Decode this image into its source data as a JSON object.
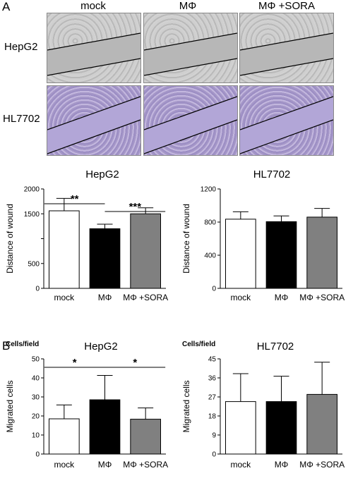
{
  "figure": {
    "panel_a": "A",
    "panel_b": "B",
    "columns": [
      "mock",
      "MΦ",
      "MΦ +SORA"
    ],
    "rows": [
      "HepG2",
      "HL7702"
    ]
  },
  "chart_data": [
    {
      "type": "bar",
      "title": "HepG2",
      "ylabel": "Distance of wound",
      "categories": [
        "mock",
        "MΦ",
        "MΦ +SORA"
      ],
      "values": [
        1560,
        1200,
        1500
      ],
      "errors": [
        250,
        90,
        120
      ],
      "colors": [
        "#ffffff",
        "#000000",
        "#808080"
      ],
      "ylim": [
        0,
        2000
      ],
      "yticks": [
        0,
        500,
        1000,
        1500,
        2000
      ],
      "yticklabels": [
        "0",
        "500",
        "",
        "1500",
        "2000"
      ],
      "significance": [
        {
          "from": 0,
          "to": 1,
          "label": "**"
        },
        {
          "from": 1,
          "to": 2,
          "label": "***"
        }
      ]
    },
    {
      "type": "bar",
      "title": "HL7702",
      "ylabel": "Distance of wound",
      "categories": [
        "mock",
        "MΦ",
        "MΦ +SORA"
      ],
      "values": [
        835,
        805,
        860
      ],
      "errors": [
        90,
        70,
        105
      ],
      "colors": [
        "#ffffff",
        "#000000",
        "#808080"
      ],
      "ylim": [
        0,
        1200
      ],
      "yticks": [
        0,
        400,
        800,
        1200
      ],
      "yticklabels": [
        "0",
        "400",
        "800",
        "1200"
      ],
      "significance": []
    },
    {
      "type": "bar",
      "title": "HepG2",
      "ylabel": "Migrated cells",
      "unit_label": "Cells/field",
      "categories": [
        "mock",
        "MΦ",
        "MΦ +SORA"
      ],
      "values": [
        18.5,
        28.5,
        18.3
      ],
      "errors": [
        7.3,
        12.8,
        5.9
      ],
      "colors": [
        "#ffffff",
        "#000000",
        "#808080"
      ],
      "ylim": [
        0,
        50
      ],
      "yticks": [
        0,
        10,
        20,
        30,
        40,
        50
      ],
      "yticklabels": [
        "0",
        "10",
        "20",
        "30",
        "40",
        "50"
      ],
      "significance": [
        {
          "from": 0,
          "to": 1,
          "label": "*"
        },
        {
          "from": 1,
          "to": 2,
          "label": "*"
        }
      ]
    },
    {
      "type": "bar",
      "title": "HL7702",
      "ylabel": "Migrated cells",
      "unit_label": "Cells/field",
      "categories": [
        "mock",
        "MΦ",
        "MΦ +SORA"
      ],
      "values": [
        24.8,
        24.8,
        28.2
      ],
      "errors": [
        13.2,
        12.0,
        15.2
      ],
      "colors": [
        "#ffffff",
        "#000000",
        "#808080"
      ],
      "ylim": [
        0,
        45
      ],
      "yticks": [
        0,
        9,
        18,
        27,
        36,
        45
      ],
      "yticklabels": [
        "0",
        "9",
        "18",
        "27",
        "36",
        "45"
      ],
      "significance": []
    }
  ]
}
